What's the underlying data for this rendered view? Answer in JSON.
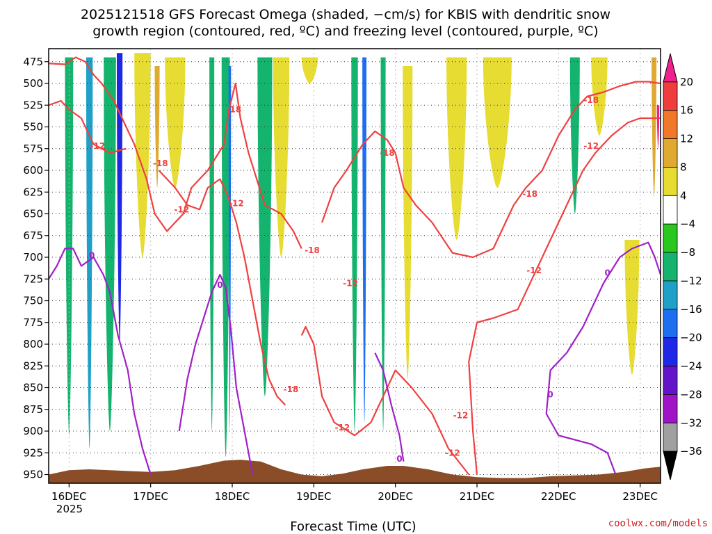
{
  "chart_data": {
    "type": "heatmap",
    "title_line1": "2025121518 GFS Forecast Omega (shaded, −cm/s) for KBIS with dendritic snow",
    "title_line2": "growth region (contoured, red, ºC) and freezing level (contoured, purple, ºC)",
    "xlabel": "Forecast Time (UTC)",
    "credit": "coolwx.com/models",
    "x_ticks": [
      "16DEC",
      "17DEC",
      "18DEC",
      "19DEC",
      "20DEC",
      "21DEC",
      "22DEC",
      "23DEC"
    ],
    "x_year": "2025",
    "x_range_days": [
      15.75,
      23.25
    ],
    "y_ticks": [
      "475",
      "500",
      "525",
      "550",
      "575",
      "600",
      "625",
      "650",
      "675",
      "700",
      "725",
      "750",
      "775",
      "800",
      "825",
      "850",
      "875",
      "900",
      "925",
      "950"
    ],
    "y_range_hpa": [
      460,
      960
    ],
    "colorbar": {
      "labels": [
        "20",
        "16",
        "12",
        "8",
        "4",
        "−4",
        "−8",
        "−12",
        "−16",
        "−20",
        "−24",
        "−28",
        "−32",
        "−36"
      ],
      "colors": [
        "#f0208c",
        "#f03c3c",
        "#f07828",
        "#e0aa30",
        "#e6dc32",
        "#ffffff",
        "#28c81e",
        "#14b46e",
        "#1ea0c8",
        "#1e6ef0",
        "#1e28e6",
        "#6414c8",
        "#a014c8",
        "#a0a0a0",
        "#000000"
      ]
    },
    "omega_regions": [
      {
        "label": "-8",
        "day": 16.0,
        "p_top": 470,
        "p_bot": 905,
        "width": 0.1
      },
      {
        "label": "-12",
        "day": 16.25,
        "p_top": 470,
        "p_bot": 920,
        "width": 0.08
      },
      {
        "label": "-8",
        "day": 16.5,
        "p_top": 470,
        "p_bot": 900,
        "width": 0.15
      },
      {
        "label": "-20",
        "day": 16.62,
        "p_top": 465,
        "p_bot": 800,
        "width": 0.07
      },
      {
        "label": "4",
        "day": 16.9,
        "p_top": 465,
        "p_bot": 700,
        "width": 0.2
      },
      {
        "label": "8",
        "day": 17.08,
        "p_top": 480,
        "p_bot": 620,
        "width": 0.06
      },
      {
        "label": "4",
        "day": 17.3,
        "p_top": 470,
        "p_bot": 620,
        "width": 0.25
      },
      {
        "label": "-8",
        "day": 17.75,
        "p_top": 470,
        "p_bot": 900,
        "width": 0.06
      },
      {
        "label": "-8",
        "day": 17.92,
        "p_top": 470,
        "p_bot": 930,
        "width": 0.1
      },
      {
        "label": "-16",
        "day": 17.97,
        "p_top": 480,
        "p_bot": 900,
        "width": 0.03
      },
      {
        "label": "-8",
        "day": 18.4,
        "p_top": 470,
        "p_bot": 860,
        "width": 0.18
      },
      {
        "label": "4",
        "day": 18.6,
        "p_top": 470,
        "p_bot": 700,
        "width": 0.2
      },
      {
        "label": "4",
        "day": 18.95,
        "p_top": 470,
        "p_bot": 500,
        "width": 0.2
      },
      {
        "label": "-8",
        "day": 19.5,
        "p_top": 470,
        "p_bot": 900,
        "width": 0.08
      },
      {
        "label": "-16",
        "day": 19.62,
        "p_top": 470,
        "p_bot": 890,
        "width": 0.05
      },
      {
        "label": "-8",
        "day": 19.85,
        "p_top": 470,
        "p_bot": 900,
        "width": 0.06
      },
      {
        "label": "4",
        "day": 20.15,
        "p_top": 480,
        "p_bot": 840,
        "width": 0.12
      },
      {
        "label": "4",
        "day": 20.75,
        "p_top": 470,
        "p_bot": 680,
        "width": 0.25
      },
      {
        "label": "4",
        "day": 21.25,
        "p_top": 470,
        "p_bot": 620,
        "width": 0.35
      },
      {
        "label": "-8",
        "day": 22.2,
        "p_top": 470,
        "p_bot": 650,
        "width": 0.12
      },
      {
        "label": "4",
        "day": 22.5,
        "p_top": 470,
        "p_bot": 560,
        "width": 0.2
      },
      {
        "label": "4",
        "day": 22.9,
        "p_top": 680,
        "p_bot": 835,
        "width": 0.18
      },
      {
        "label": "8",
        "day": 23.17,
        "p_top": 470,
        "p_bot": 630,
        "width": 0.06
      },
      {
        "label": "20",
        "day": 23.22,
        "p_top": 525,
        "p_bot": 575,
        "width": 0.03
      }
    ],
    "ground": [
      [
        15.75,
        950
      ],
      [
        16.0,
        945
      ],
      [
        16.25,
        944
      ],
      [
        16.5,
        945
      ],
      [
        16.75,
        946
      ],
      [
        17.0,
        947
      ],
      [
        17.3,
        945
      ],
      [
        17.6,
        940
      ],
      [
        17.9,
        934
      ],
      [
        18.1,
        933
      ],
      [
        18.35,
        935
      ],
      [
        18.6,
        944
      ],
      [
        18.85,
        950
      ],
      [
        19.1,
        952
      ],
      [
        19.35,
        949
      ],
      [
        19.6,
        944
      ],
      [
        19.9,
        940
      ],
      [
        20.1,
        940
      ],
      [
        20.4,
        944
      ],
      [
        20.7,
        950
      ],
      [
        21.0,
        953
      ],
      [
        21.3,
        954
      ],
      [
        21.6,
        954
      ],
      [
        21.9,
        952
      ],
      [
        22.2,
        951
      ],
      [
        22.5,
        950
      ],
      [
        22.8,
        947
      ],
      [
        23.05,
        943
      ],
      [
        23.25,
        941
      ]
    ],
    "contours": [
      {
        "color": "#f04040",
        "label": "-18",
        "points": [
          [
            15.75,
            477
          ],
          [
            15.95,
            478
          ],
          [
            16.08,
            470
          ],
          [
            16.2,
            475
          ],
          [
            16.3,
            490
          ],
          [
            16.4,
            500
          ],
          [
            16.55,
            520
          ],
          [
            16.65,
            540
          ],
          [
            16.8,
            570
          ],
          [
            16.95,
            610
          ],
          [
            17.05,
            650
          ],
          [
            17.2,
            670
          ],
          [
            17.4,
            650
          ],
          [
            17.5,
            620
          ],
          [
            17.7,
            600
          ],
          [
            17.9,
            570
          ],
          [
            17.96,
            530
          ],
          [
            18.04,
            500
          ],
          [
            18.1,
            540
          ],
          [
            18.2,
            580
          ],
          [
            18.3,
            610
          ],
          [
            18.4,
            640
          ],
          [
            18.6,
            650
          ],
          [
            18.75,
            670
          ],
          [
            18.85,
            690
          ]
        ]
      },
      {
        "color": "#f04040",
        "label": "-12",
        "points": [
          [
            15.75,
            525
          ],
          [
            15.9,
            520
          ],
          [
            16.0,
            530
          ],
          [
            16.15,
            540
          ],
          [
            16.3,
            570
          ],
          [
            16.5,
            580
          ],
          [
            16.7,
            575
          ]
        ]
      },
      {
        "color": "#f04040",
        "label": "-12",
        "points": [
          [
            17.1,
            600
          ],
          [
            17.3,
            620
          ],
          [
            17.45,
            640
          ],
          [
            17.6,
            645
          ],
          [
            17.7,
            620
          ],
          [
            17.85,
            610
          ],
          [
            17.95,
            630
          ],
          [
            18.05,
            660
          ],
          [
            18.15,
            700
          ],
          [
            18.25,
            750
          ],
          [
            18.35,
            800
          ],
          [
            18.45,
            840
          ],
          [
            18.55,
            860
          ],
          [
            18.65,
            870
          ]
        ]
      },
      {
        "color": "#f04040",
        "label": "-12",
        "points": [
          [
            18.85,
            790
          ],
          [
            18.9,
            780
          ],
          [
            19.0,
            800
          ],
          [
            19.05,
            830
          ],
          [
            19.1,
            860
          ],
          [
            19.25,
            890
          ],
          [
            19.5,
            905
          ],
          [
            19.7,
            890
          ],
          [
            19.85,
            860
          ],
          [
            20.0,
            830
          ],
          [
            20.2,
            850
          ],
          [
            20.45,
            880
          ],
          [
            20.65,
            920
          ],
          [
            20.9,
            950
          ]
        ]
      },
      {
        "color": "#f04040",
        "label": "-18",
        "points": [
          [
            19.1,
            660
          ],
          [
            19.25,
            620
          ],
          [
            19.4,
            600
          ],
          [
            19.6,
            570
          ],
          [
            19.75,
            555
          ],
          [
            19.9,
            565
          ],
          [
            20.0,
            580
          ],
          [
            20.1,
            620
          ],
          [
            20.25,
            640
          ],
          [
            20.45,
            660
          ],
          [
            20.7,
            695
          ],
          [
            20.95,
            700
          ],
          [
            21.2,
            690
          ],
          [
            21.45,
            640
          ],
          [
            21.6,
            620
          ],
          [
            21.8,
            600
          ],
          [
            22.0,
            560
          ],
          [
            22.2,
            530
          ],
          [
            22.35,
            515
          ],
          [
            22.55,
            510
          ],
          [
            22.75,
            503
          ],
          [
            22.95,
            498
          ],
          [
            23.1,
            498
          ],
          [
            23.25,
            500
          ]
        ]
      },
      {
        "color": "#f04040",
        "label": "-12",
        "points": [
          [
            21.0,
            950
          ],
          [
            20.95,
            900
          ],
          [
            20.9,
            820
          ],
          [
            21.0,
            775
          ],
          [
            21.2,
            770
          ],
          [
            21.5,
            760
          ],
          [
            21.7,
            720
          ],
          [
            21.9,
            680
          ],
          [
            22.1,
            640
          ],
          [
            22.3,
            600
          ],
          [
            22.45,
            580
          ],
          [
            22.65,
            560
          ],
          [
            22.85,
            545
          ],
          [
            23.0,
            540
          ],
          [
            23.25,
            540
          ]
        ]
      },
      {
        "color": "#a020c8",
        "label": "0",
        "points": [
          [
            15.75,
            725
          ],
          [
            15.85,
            710
          ],
          [
            15.95,
            690
          ],
          [
            16.05,
            690
          ],
          [
            16.15,
            710
          ],
          [
            16.3,
            700
          ],
          [
            16.42,
            720
          ],
          [
            16.5,
            740
          ],
          [
            16.6,
            790
          ],
          [
            16.72,
            830
          ],
          [
            16.8,
            880
          ],
          [
            16.9,
            920
          ],
          [
            17.0,
            950
          ]
        ]
      },
      {
        "color": "#a020c8",
        "label": "0",
        "points": [
          [
            17.35,
            900
          ],
          [
            17.45,
            840
          ],
          [
            17.55,
            800
          ],
          [
            17.65,
            770
          ],
          [
            17.75,
            740
          ],
          [
            17.85,
            720
          ],
          [
            17.92,
            735
          ],
          [
            17.98,
            780
          ],
          [
            18.05,
            850
          ],
          [
            18.15,
            900
          ],
          [
            18.25,
            950
          ]
        ]
      },
      {
        "color": "#a020c8",
        "label": "0",
        "points": [
          [
            19.75,
            810
          ],
          [
            19.85,
            830
          ],
          [
            19.95,
            870
          ],
          [
            20.05,
            905
          ],
          [
            20.1,
            935
          ]
        ]
      },
      {
        "color": "#a020c8",
        "label": "0",
        "points": [
          [
            22.7,
            950
          ],
          [
            22.6,
            925
          ],
          [
            22.4,
            915
          ],
          [
            22.0,
            905
          ],
          [
            21.85,
            880
          ],
          [
            21.9,
            830
          ],
          [
            22.1,
            810
          ],
          [
            22.3,
            780
          ],
          [
            22.45,
            750
          ],
          [
            22.55,
            730
          ],
          [
            22.75,
            700
          ],
          [
            22.9,
            690
          ],
          [
            23.1,
            683
          ],
          [
            23.18,
            700
          ],
          [
            23.25,
            720
          ]
        ]
      }
    ],
    "contour_labels": [
      {
        "text": "-18",
        "day": 18.02,
        "p": 530,
        "color": "#f04040"
      },
      {
        "text": "-12",
        "day": 16.35,
        "p": 572,
        "color": "#f04040"
      },
      {
        "text": "-18",
        "day": 17.12,
        "p": 592,
        "color": "#f04040"
      },
      {
        "text": "-12",
        "day": 17.38,
        "p": 645,
        "color": "#f04040"
      },
      {
        "text": "-12",
        "day": 18.05,
        "p": 638,
        "color": "#f04040"
      },
      {
        "text": "-18",
        "day": 18.98,
        "p": 692,
        "color": "#f04040"
      },
      {
        "text": "-18",
        "day": 19.9,
        "p": 580,
        "color": "#f04040"
      },
      {
        "text": "-12",
        "day": 19.45,
        "p": 730,
        "color": "#f04040"
      },
      {
        "text": "-18",
        "day": 18.72,
        "p": 852,
        "color": "#f04040"
      },
      {
        "text": "-12",
        "day": 19.35,
        "p": 896,
        "color": "#f04040"
      },
      {
        "text": "-12",
        "day": 20.8,
        "p": 882,
        "color": "#f04040"
      },
      {
        "text": "-12",
        "day": 20.7,
        "p": 925,
        "color": "#f04040"
      },
      {
        "text": "-12",
        "day": 21.7,
        "p": 715,
        "color": "#f04040"
      },
      {
        "text": "-18",
        "day": 21.65,
        "p": 627,
        "color": "#f04040"
      },
      {
        "text": "-18",
        "day": 22.4,
        "p": 519,
        "color": "#f04040"
      },
      {
        "text": "-12",
        "day": 22.4,
        "p": 572,
        "color": "#f04040"
      },
      {
        "text": "0",
        "day": 16.28,
        "p": 698,
        "color": "#a020c8"
      },
      {
        "text": "0",
        "day": 17.85,
        "p": 732,
        "color": "#a020c8"
      },
      {
        "text": "0",
        "day": 20.05,
        "p": 932,
        "color": "#a020c8"
      },
      {
        "text": "0",
        "day": 21.9,
        "p": 858,
        "color": "#a020c8"
      },
      {
        "text": "0",
        "day": 22.6,
        "p": 718,
        "color": "#a020c8"
      }
    ]
  }
}
